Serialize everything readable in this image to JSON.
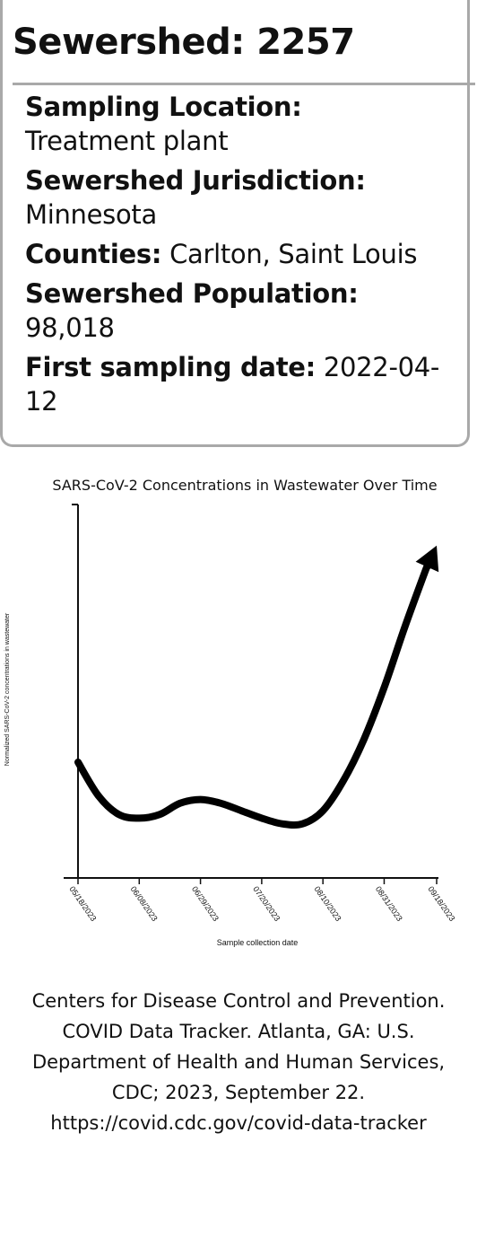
{
  "card": {
    "title": "Sewershed: 2257",
    "fields": [
      {
        "label": "Sampling Location:",
        "value": "Treatment plant",
        "break": true
      },
      {
        "label": "Sewershed Jurisdiction:",
        "value": "Minnesota",
        "break": true
      },
      {
        "label": "Counties:",
        "value": "Carlton, Saint Louis",
        "break": false
      },
      {
        "label": "Sewershed Population:",
        "value": "98,018",
        "break": true
      },
      {
        "label": "First sampling date:",
        "value": "2022-04-12",
        "break": false
      }
    ]
  },
  "chart_data": {
    "type": "line",
    "title": "SARS-CoV-2 Concentrations in Wastewater Over Time",
    "xlabel": "Sample collection date",
    "ylabel": "Normalized SARS-CoV-2 concentrations in wastewater",
    "x_ticks": [
      "05/18/2023",
      "06/08/2023",
      "06/29/2023",
      "07/20/2023",
      "08/10/2023",
      "08/31/2023",
      "09/18/2023"
    ],
    "y_ticks": [],
    "ylim": [
      0,
      10
    ],
    "grid": false,
    "arrow_at_end": true,
    "series": [
      {
        "x": [
          "05/18/2023",
          "05/25/2023",
          "06/01/2023",
          "06/08/2023",
          "06/15/2023",
          "06/22/2023",
          "06/29/2023",
          "07/06/2023",
          "07/13/2023",
          "07/20/2023",
          "07/27/2023",
          "08/03/2023",
          "08/10/2023",
          "08/17/2023",
          "08/24/2023",
          "08/31/2023",
          "09/07/2023",
          "09/14/2023",
          "09/18/2023"
        ],
        "y": [
          3.1,
          2.2,
          1.7,
          1.6,
          1.7,
          2.0,
          2.1,
          2.0,
          1.8,
          1.6,
          1.45,
          1.45,
          1.8,
          2.6,
          3.7,
          5.1,
          6.7,
          8.2,
          8.9
        ]
      }
    ]
  },
  "citation": {
    "lines": [
      "Centers for Disease Control and Prevention.",
      "COVID Data Tracker. Atlanta, GA: U.S.",
      "Department of Health and Human Services,",
      "CDC; 2023, September 22.",
      "https://covid.cdc.gov/covid-data-tracker"
    ]
  }
}
